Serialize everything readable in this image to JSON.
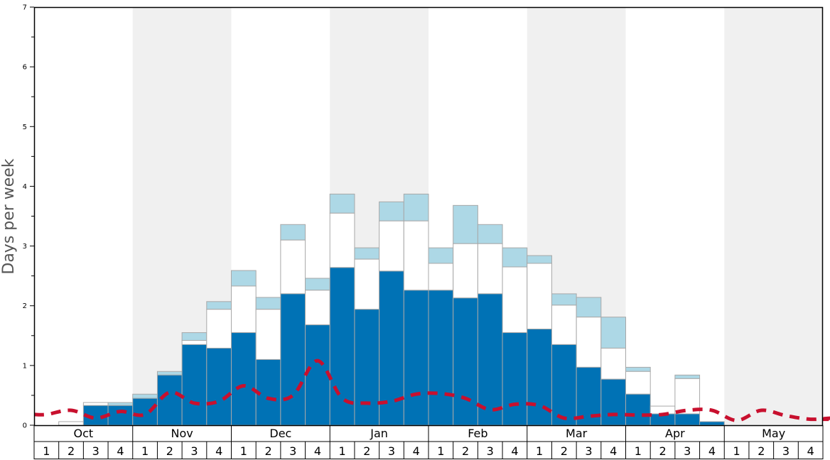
{
  "chart_data": {
    "type": "bar",
    "ylabel": "Days per week",
    "ylim": [
      0,
      7
    ],
    "yticks": [
      0,
      1,
      2,
      3,
      4,
      5,
      6,
      7
    ],
    "months": [
      "Oct",
      "Nov",
      "Dec",
      "Jan",
      "Feb",
      "Mar",
      "Apr",
      "May"
    ],
    "weeks": [
      "1",
      "2",
      "3",
      "4"
    ],
    "colors": {
      "base": "#0072b5",
      "middle": "#ffffff",
      "top": "#add8e6",
      "line": "#c8102e",
      "shade": "#f0f0f0",
      "bar_edge": "#a8a8a8"
    },
    "series": [
      {
        "values": [
          0,
          0,
          0.33,
          0.33,
          0.45,
          0.84,
          1.35,
          1.29,
          1.55,
          1.1,
          2.2,
          1.68,
          2.64,
          1.94,
          2.58,
          2.26,
          2.26,
          2.13,
          2.2,
          1.55,
          1.61,
          1.35,
          0.97,
          0.77,
          0.52,
          0.19,
          0.19,
          0.06,
          0,
          0,
          0,
          0,
          0,
          0,
          0,
          0
        ]
      },
      {
        "values": [
          0,
          0.06,
          0.38,
          0.33,
          0.45,
          0.84,
          1.42,
          1.94,
          2.33,
          1.94,
          3.1,
          2.26,
          3.55,
          2.78,
          3.42,
          3.42,
          2.71,
          3.04,
          3.04,
          2.65,
          2.71,
          2.01,
          1.81,
          1.29,
          0.9,
          0.32,
          0.78,
          0.06,
          0,
          0,
          0,
          0,
          0,
          0,
          0,
          0
        ]
      },
      {
        "values": [
          0,
          0.06,
          0.38,
          0.38,
          0.52,
          0.9,
          1.55,
          2.07,
          2.59,
          2.14,
          3.36,
          2.46,
          3.87,
          2.97,
          3.74,
          3.87,
          2.97,
          3.68,
          3.36,
          2.97,
          2.84,
          2.2,
          2.14,
          1.81,
          0.97,
          0.32,
          0.84,
          0.06,
          0,
          0,
          0,
          0,
          0,
          0,
          0,
          0
        ]
      },
      {
        "values": [
          0.18,
          0.25,
          0.12,
          0.23,
          0.18,
          0.55,
          0.37,
          0.4,
          0.66,
          0.45,
          0.5,
          1.08,
          0.45,
          0.37,
          0.4,
          0.52,
          0.53,
          0.45,
          0.26,
          0.35,
          0.33,
          0.12,
          0.15,
          0.18,
          0.17,
          0.18,
          0.25,
          0.25,
          0.08,
          0.25,
          0.16,
          0.1,
          0.12,
          0.1,
          0.1,
          0.1
        ]
      }
    ]
  }
}
